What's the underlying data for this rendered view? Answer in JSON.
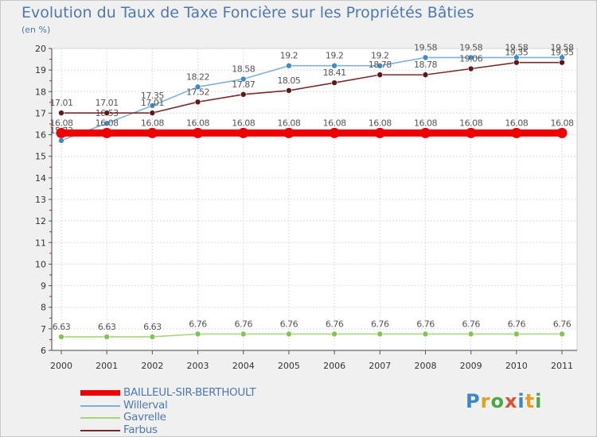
{
  "chart_data": {
    "type": "line",
    "title": "Evolution du Taux de Taxe Foncière sur les Propriétés Bâties",
    "ylabel": "(en %)",
    "xlabel": "",
    "x": [
      "2000",
      "2001",
      "2002",
      "2003",
      "2004",
      "2005",
      "2006",
      "2007",
      "2008",
      "2009",
      "2010",
      "2011"
    ],
    "ylim": [
      6,
      20
    ],
    "yticks": [
      "6",
      "7",
      "8",
      "9",
      "10",
      "11",
      "12",
      "13",
      "14",
      "15",
      "16",
      "17",
      "18",
      "19",
      "20"
    ],
    "grid": true,
    "legend_position": "bottom-left",
    "series": [
      {
        "name": "Willerval",
        "color": "#7fb0dd",
        "marker": "#3d8cc9",
        "values": [
          15.73,
          16.53,
          17.35,
          18.22,
          18.58,
          19.2,
          19.2,
          19.2,
          19.58,
          19.58,
          19.58,
          19.58
        ],
        "labels": [
          "15.73",
          "16.53",
          "17.35",
          "18.22",
          "18.58",
          "19.2",
          "19.2",
          "19.2",
          "19.58",
          "19.58",
          "19.58",
          "19.58"
        ]
      },
      {
        "name": "Farbus",
        "color": "#7a2a2a",
        "marker": "#5e1818",
        "values": [
          17.01,
          17.01,
          17.01,
          17.52,
          17.87,
          18.05,
          18.41,
          18.78,
          18.78,
          19.06,
          19.35,
          19.35
        ],
        "labels": [
          "17.01",
          "17.01",
          "17.01",
          "17.52",
          "17.87",
          "18.05",
          "18.41",
          "18.78",
          "18.78",
          "19.06",
          "19.35",
          "19.35"
        ]
      },
      {
        "name": "Gavrelle",
        "color": "#a4d77a",
        "marker": "#84c454",
        "values": [
          6.63,
          6.63,
          6.63,
          6.76,
          6.76,
          6.76,
          6.76,
          6.76,
          6.76,
          6.76,
          6.76,
          6.76
        ],
        "labels": [
          "6.63",
          "6.63",
          "6.63",
          "6.76",
          "6.76",
          "6.76",
          "6.76",
          "6.76",
          "6.76",
          "6.76",
          "6.76",
          "6.76"
        ]
      },
      {
        "name": "BAILLEUL-SIR-BERTHOULT",
        "color": "#ee0000",
        "marker": "#ee0000",
        "values": [
          16.08,
          16.08,
          16.08,
          16.08,
          16.08,
          16.08,
          16.08,
          16.08,
          16.08,
          16.08,
          16.08,
          16.08
        ],
        "labels": [
          "16.08",
          "16.08",
          "16.08",
          "16.08",
          "16.08",
          "16.08",
          "16.08",
          "16.08",
          "16.08",
          "16.08",
          "16.08",
          "16.08"
        ]
      }
    ],
    "legend": [
      {
        "name": "BAILLEUL-SIR-BERTHOULT",
        "color": "#ee0000"
      },
      {
        "name": "Willerval",
        "color": "#7fb0dd"
      },
      {
        "name": "Gavrelle",
        "color": "#a4d77a"
      },
      {
        "name": "Farbus",
        "color": "#7a2a2a"
      }
    ]
  },
  "logo": {
    "text": "Proxiti"
  }
}
